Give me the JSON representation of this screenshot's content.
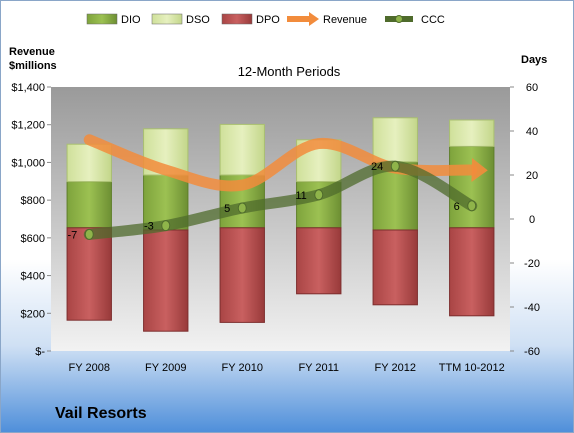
{
  "footer": {
    "company": "Vail Resorts"
  },
  "colors": {
    "dio": "#8fb44a",
    "dso": "#d9e8a9",
    "dpo": "#c05050",
    "revenue": "#f28c3c",
    "ccc": "#4f6b2c",
    "plot_top": "#9a9a9a",
    "plot_bottom": "#f2f2f2"
  },
  "chart_data": {
    "type": "bar",
    "title": "12-Month Periods",
    "ylabel_left": "Revenue\n$millions",
    "ylabel_right": "Days",
    "categories": [
      "FY 2008",
      "FY 2009",
      "FY 2010",
      "FY 2011",
      "FY 2012",
      "TTM 10-2012"
    ],
    "left_axis": {
      "range": [
        0,
        1400
      ],
      "ticks": [
        0,
        200,
        400,
        600,
        800,
        1000,
        1200,
        1400
      ],
      "tick_labels": [
        "$-",
        "$200",
        "$400",
        "$600",
        "$800",
        "$1,000",
        "$1,200",
        "$1,400"
      ]
    },
    "right_axis": {
      "range": [
        -60,
        60
      ],
      "ticks": [
        -60,
        -40,
        -20,
        0,
        20,
        40,
        60
      ],
      "tick_labels": [
        "-60",
        "-40",
        "-20",
        "0",
        "20",
        "40",
        "60"
      ]
    },
    "series": [
      {
        "name": "DIO",
        "type": "bar",
        "axis": "right",
        "base": [
          -4,
          -5,
          -4,
          -4,
          -5,
          -4
        ],
        "values": [
          21,
          25,
          24,
          21,
          31,
          37
        ]
      },
      {
        "name": "DSO",
        "type": "bar",
        "axis": "right",
        "base": [
          17,
          20,
          20,
          17,
          26,
          33
        ],
        "values": [
          17,
          21,
          23,
          19,
          20,
          12
        ]
      },
      {
        "name": "DPO",
        "type": "bar",
        "axis": "right",
        "base": [
          -4,
          -5,
          -4,
          -4,
          -5,
          -4
        ],
        "values": [
          -42,
          -46,
          -43,
          -30,
          -34,
          -40
        ]
      },
      {
        "name": "Revenue",
        "type": "line",
        "axis": "left",
        "values": [
          1120,
          960,
          880,
          1100,
          970,
          960
        ]
      },
      {
        "name": "CCC",
        "type": "line",
        "axis": "right",
        "values": [
          -7,
          -3,
          5,
          11,
          24,
          6
        ]
      }
    ],
    "data_labels": [
      "-7",
      "-3",
      "5",
      "11",
      "24",
      "6"
    ],
    "legend": {
      "position": "top",
      "entries": [
        "DIO",
        "DSO",
        "DPO",
        "Revenue",
        "CCC"
      ]
    },
    "grid": false
  }
}
